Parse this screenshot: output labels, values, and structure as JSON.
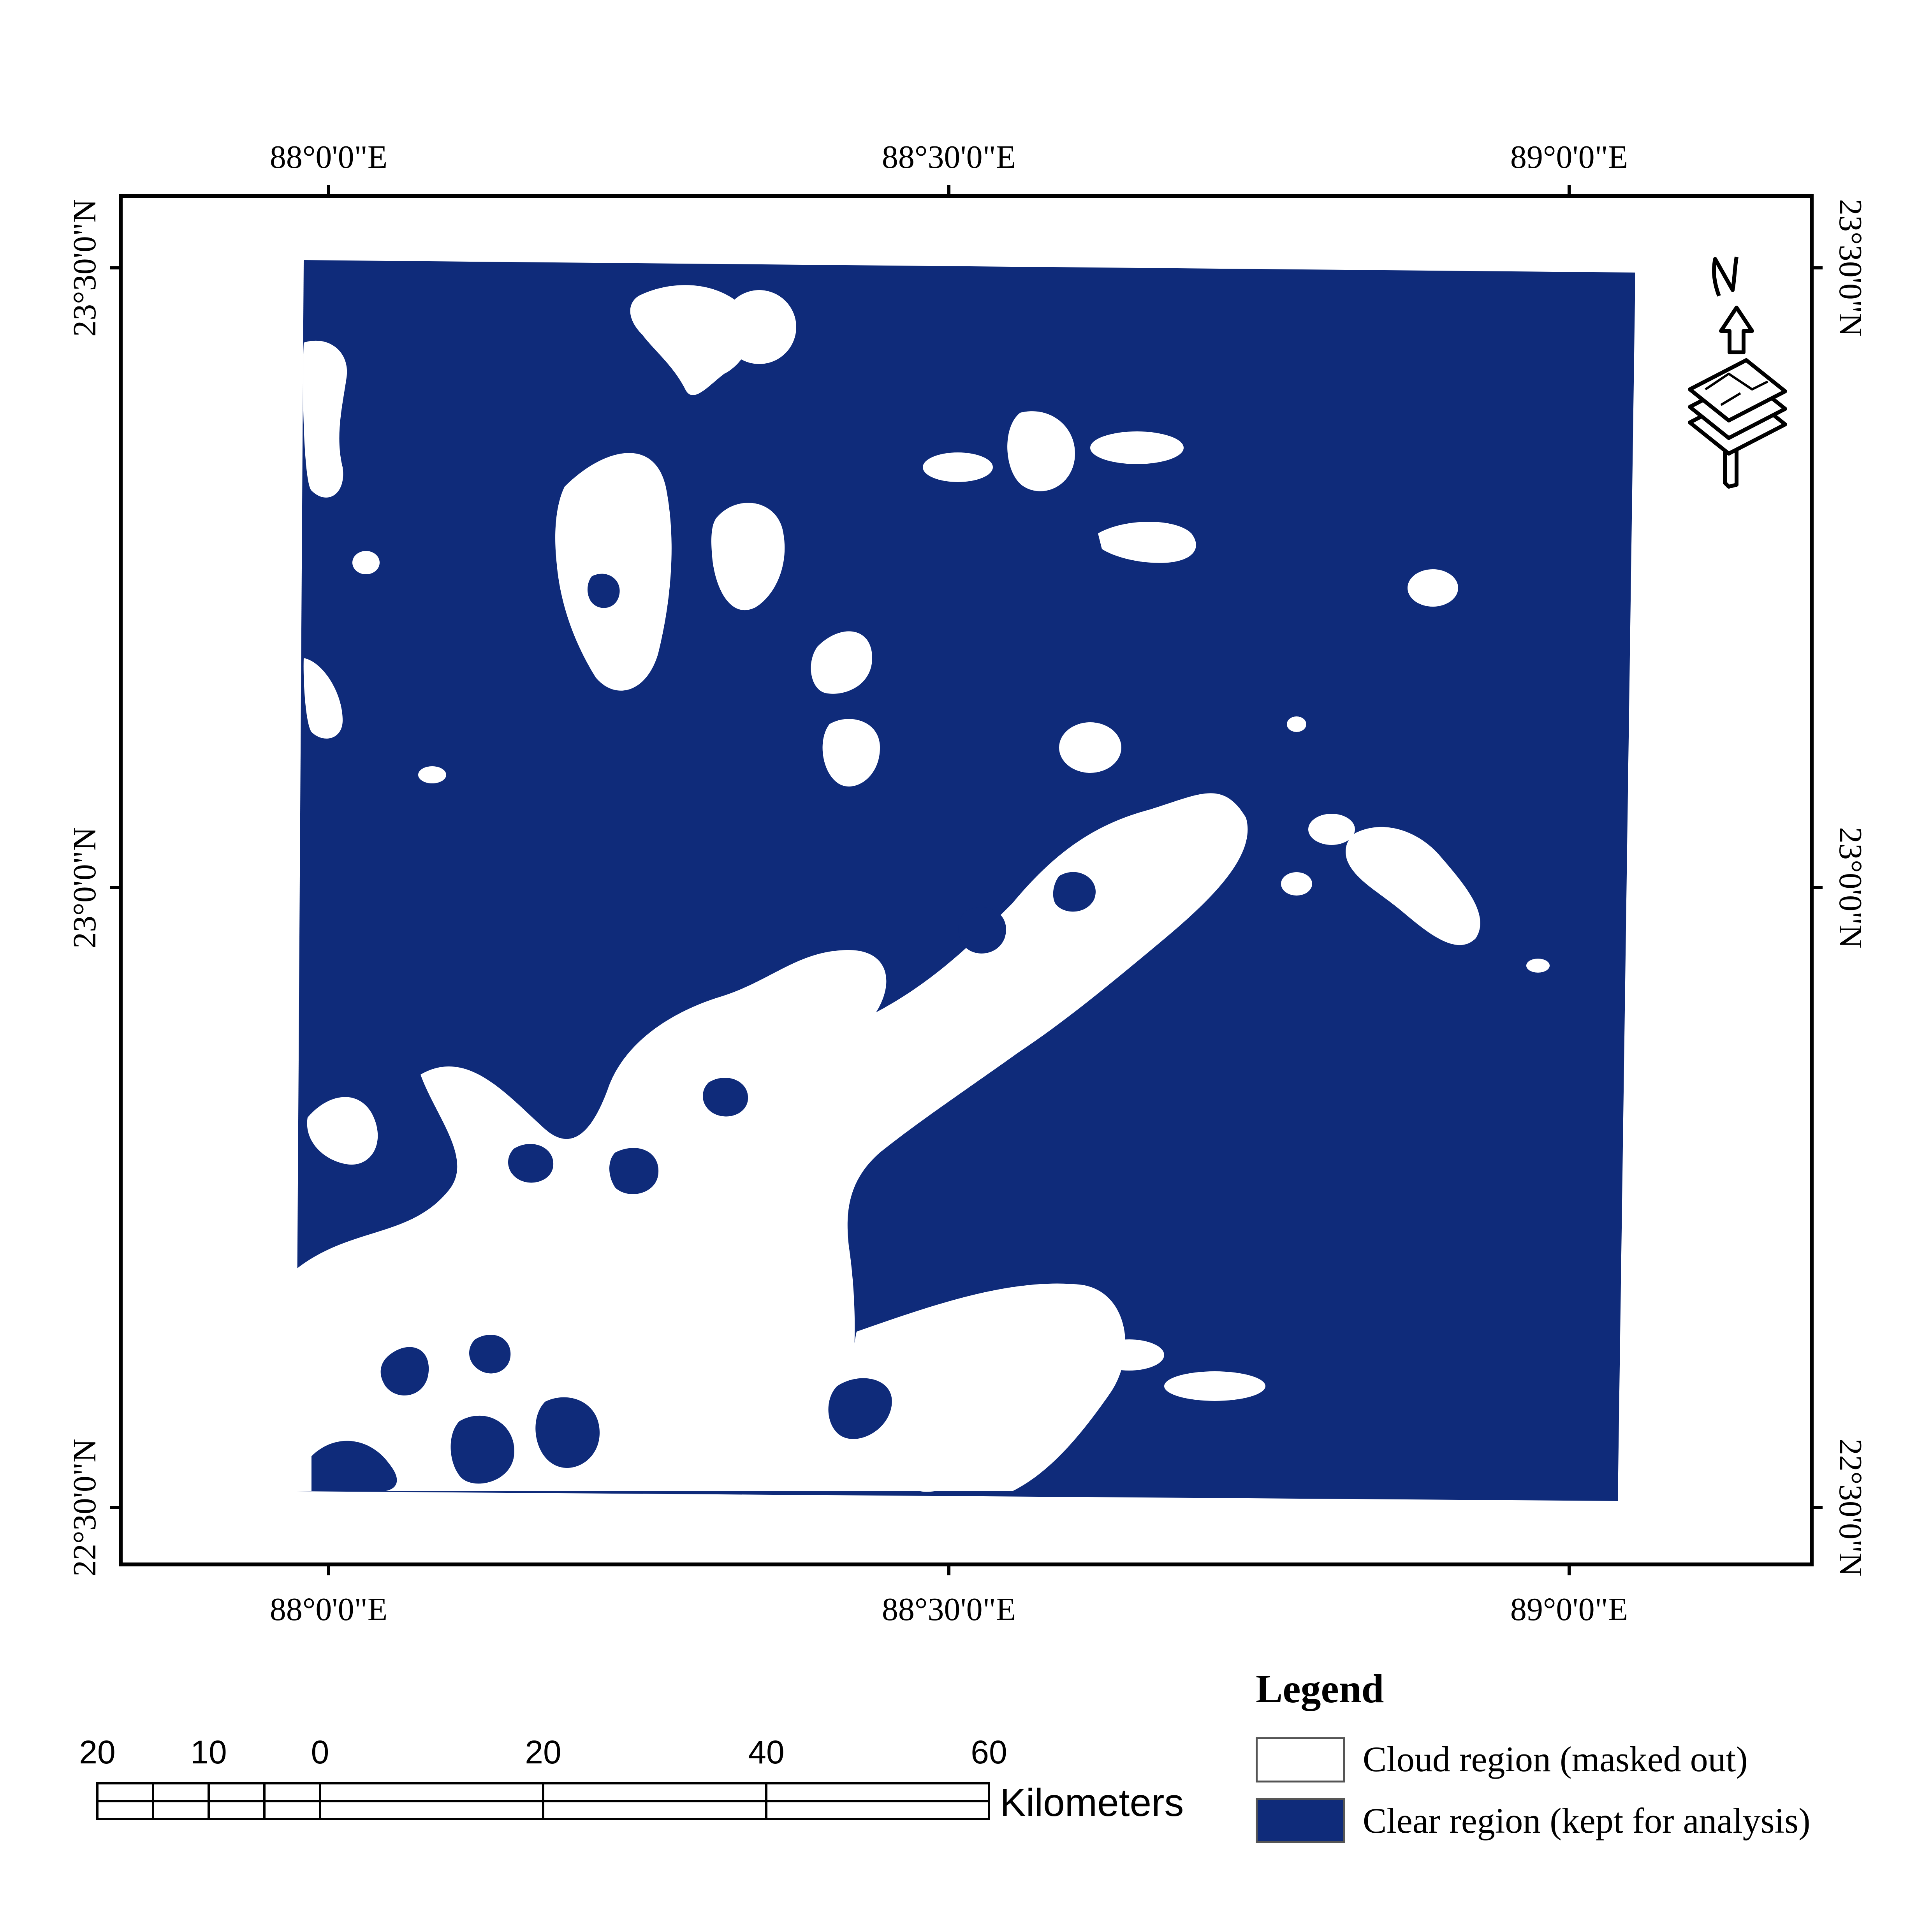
{
  "colors": {
    "clear": "#0f2b7a",
    "cloud": "#ffffff",
    "frame": "#000000"
  },
  "map": {
    "lon_labels": [
      "88°0'0\"E",
      "88°30'0\"E",
      "89°0'0\"E"
    ],
    "lat_labels": [
      "23°30'0\"N",
      "23°0'0\"N",
      "22°30'0\"N"
    ],
    "north_arrow": {
      "letter": "N",
      "icon": "north-arrow-icon"
    }
  },
  "scale_bar": {
    "numbers": [
      "20",
      "10",
      "0",
      "20",
      "40",
      "60"
    ],
    "unit": "Kilometers"
  },
  "legend": {
    "title": "Legend",
    "items": [
      {
        "label": "Cloud region (masked out)",
        "color": "#ffffff"
      },
      {
        "label": "Clear region (kept for analysis)",
        "color": "#0f2b7a"
      }
    ]
  }
}
